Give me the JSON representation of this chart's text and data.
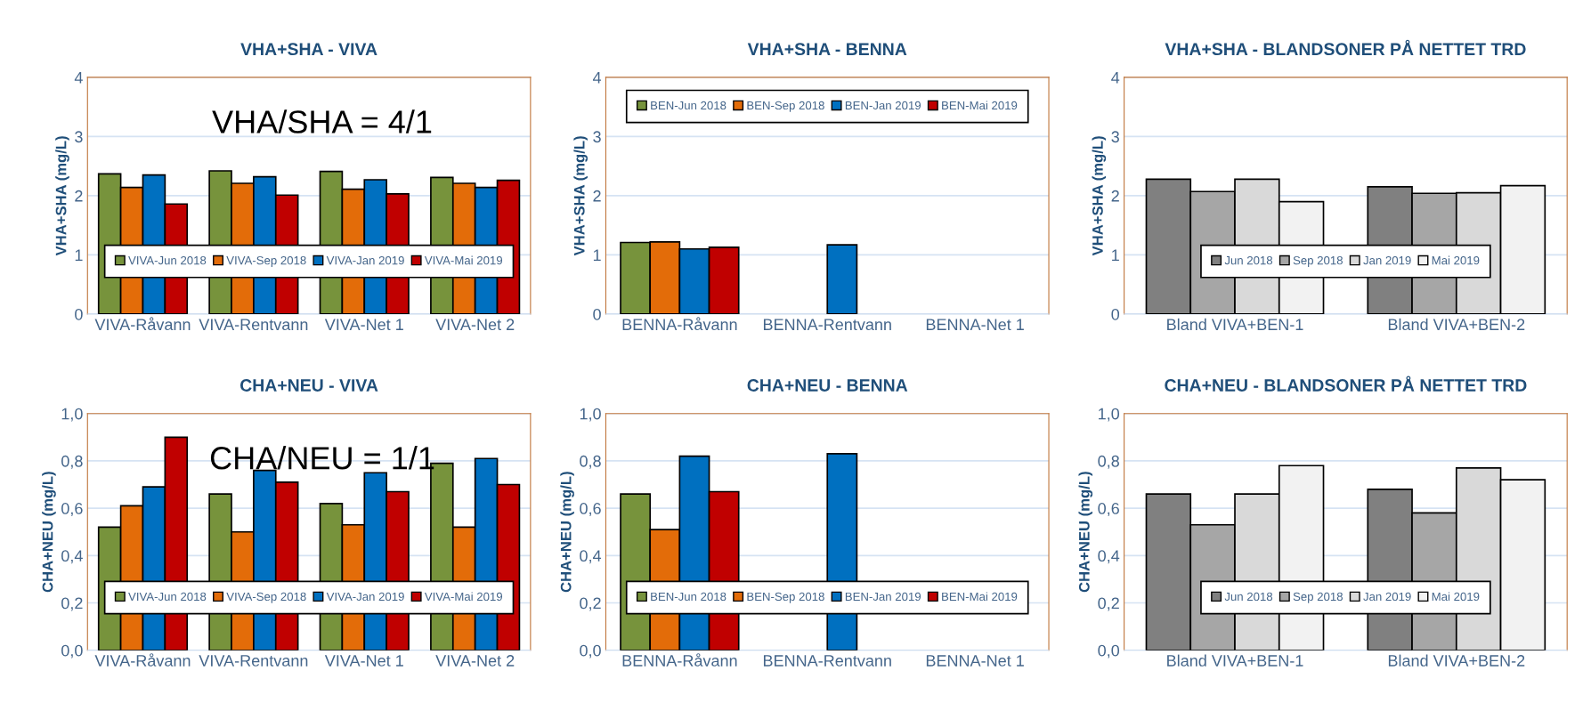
{
  "chart_data": [
    {
      "type": "bar",
      "title": "VHA+SHA - VIVA",
      "ylabel": "VHA+SHA (mg/L)",
      "categories": [
        "VIVA-Råvann",
        "VIVA-Rentvann",
        "VIVA-Net 1",
        "VIVA-Net 2"
      ],
      "series": [
        {
          "name": "VIVA-Jun 2018",
          "color": "#77933c",
          "values": [
            2.37,
            2.42,
            2.41,
            2.31
          ]
        },
        {
          "name": "VIVA-Sep 2018",
          "color": "#e36c09",
          "values": [
            2.14,
            2.21,
            2.11,
            2.21
          ]
        },
        {
          "name": "VIVA-Jan 2019",
          "color": "#0070c0",
          "values": [
            2.35,
            2.32,
            2.27,
            2.14
          ]
        },
        {
          "name": "VIVA-Mai 2019",
          "color": "#c00000",
          "values": [
            1.86,
            2.01,
            2.03,
            2.26
          ]
        }
      ],
      "ylim": [
        0,
        4
      ],
      "yticks": [
        0,
        1,
        2,
        3,
        4
      ],
      "grid": "y",
      "legend": "bottom",
      "annotations": [
        "VHA/SHA = 4/1"
      ]
    },
    {
      "type": "bar",
      "title": "VHA+SHA - BENNA",
      "ylabel": "VHA+SHA (mg/L)",
      "categories": [
        "BENNA-Råvann",
        "BENNA-Rentvann",
        "BENNA-Net 1"
      ],
      "series": [
        {
          "name": "BEN-Jun 2018",
          "color": "#77933c",
          "values": [
            1.21,
            null,
            null
          ]
        },
        {
          "name": "BEN-Sep 2018",
          "color": "#e36c09",
          "values": [
            1.22,
            null,
            null
          ]
        },
        {
          "name": "BEN-Jan 2019",
          "color": "#0070c0",
          "values": [
            1.1,
            1.17,
            null
          ]
        },
        {
          "name": "BEN-Mai 2019",
          "color": "#c00000",
          "values": [
            1.13,
            null,
            null
          ]
        }
      ],
      "ylim": [
        0,
        4
      ],
      "yticks": [
        0,
        1,
        2,
        3,
        4
      ],
      "grid": "y",
      "legend": "top"
    },
    {
      "type": "bar",
      "title": "VHA+SHA - BLANDSONER PÅ NETTET TRD",
      "ylabel": "VHA+SHA (mg/L)",
      "categories": [
        "Bland VIVA+BEN-1",
        "Bland VIVA+BEN-2"
      ],
      "series": [
        {
          "name": "Jun 2018",
          "color": "#808080",
          "values": [
            2.28,
            2.15
          ]
        },
        {
          "name": "Sep 2018",
          "color": "#a6a6a6",
          "values": [
            2.07,
            2.04
          ]
        },
        {
          "name": "Jan 2019",
          "color": "#d9d9d9",
          "values": [
            2.28,
            2.05
          ]
        },
        {
          "name": "Mai 2019",
          "color": "#f2f2f2",
          "values": [
            1.9,
            2.17
          ]
        }
      ],
      "ylim": [
        0,
        4
      ],
      "yticks": [
        0,
        1,
        2,
        3,
        4
      ],
      "grid": "y",
      "legend": "bottom"
    },
    {
      "type": "bar",
      "title": "CHA+NEU - VIVA",
      "ylabel": "CHA+NEU (mg/L)",
      "categories": [
        "VIVA-Råvann",
        "VIVA-Rentvann",
        "VIVA-Net 1",
        "VIVA-Net 2"
      ],
      "series": [
        {
          "name": "VIVA-Jun 2018",
          "color": "#77933c",
          "values": [
            0.52,
            0.66,
            0.62,
            0.79
          ]
        },
        {
          "name": "VIVA-Sep 2018",
          "color": "#e36c09",
          "values": [
            0.61,
            0.5,
            0.53,
            0.52
          ]
        },
        {
          "name": "VIVA-Jan 2019",
          "color": "#0070c0",
          "values": [
            0.69,
            0.76,
            0.75,
            0.81
          ]
        },
        {
          "name": "VIVA-Mai 2019",
          "color": "#c00000",
          "values": [
            0.9,
            0.71,
            0.67,
            0.7
          ]
        }
      ],
      "ylim": [
        0,
        1
      ],
      "yticks": [
        {
          "value": 0,
          "label": "0,0"
        },
        {
          "value": 0.2,
          "label": "0,2"
        },
        {
          "value": 0.4,
          "label": "0,4"
        },
        {
          "value": 0.6,
          "label": "0,6"
        },
        {
          "value": 0.8,
          "label": "0,8"
        },
        {
          "value": 1,
          "label": "1,0"
        }
      ],
      "grid": "y",
      "legend": "bottom",
      "annotations": [
        "CHA/NEU = 1/1"
      ]
    },
    {
      "type": "bar",
      "title": "CHA+NEU - BENNA",
      "ylabel": "CHA+NEU (mg/L)",
      "categories": [
        "BENNA-Råvann",
        "BENNA-Rentvann",
        "BENNA-Net 1"
      ],
      "series": [
        {
          "name": "BEN-Jun 2018",
          "color": "#77933c",
          "values": [
            0.66,
            null,
            null
          ]
        },
        {
          "name": "BEN-Sep 2018",
          "color": "#e36c09",
          "values": [
            0.51,
            null,
            null
          ]
        },
        {
          "name": "BEN-Jan 2019",
          "color": "#0070c0",
          "values": [
            0.82,
            0.83,
            null
          ]
        },
        {
          "name": "BEN-Mai 2019",
          "color": "#c00000",
          "values": [
            0.67,
            null,
            null
          ]
        }
      ],
      "ylim": [
        0,
        1
      ],
      "yticks": [
        {
          "value": 0,
          "label": "0,0"
        },
        {
          "value": 0.2,
          "label": "0,2"
        },
        {
          "value": 0.4,
          "label": "0,4"
        },
        {
          "value": 0.6,
          "label": "0,6"
        },
        {
          "value": 0.8,
          "label": "0,8"
        },
        {
          "value": 1,
          "label": "1,0"
        }
      ],
      "grid": "y",
      "legend": "bottom"
    },
    {
      "type": "bar",
      "title": "CHA+NEU - BLANDSONER PÅ NETTET TRD",
      "ylabel": "CHA+NEU (mg/L)",
      "categories": [
        "Bland VIVA+BEN-1",
        "Bland VIVA+BEN-2"
      ],
      "series": [
        {
          "name": "Jun 2018",
          "color": "#808080",
          "values": [
            0.66,
            0.68
          ]
        },
        {
          "name": "Sep 2018",
          "color": "#a6a6a6",
          "values": [
            0.53,
            0.58
          ]
        },
        {
          "name": "Jan 2019",
          "color": "#d9d9d9",
          "values": [
            0.66,
            0.77
          ]
        },
        {
          "name": "Mai 2019",
          "color": "#f2f2f2",
          "values": [
            0.78,
            0.72
          ]
        }
      ],
      "ylim": [
        0,
        1
      ],
      "yticks": [
        {
          "value": 0,
          "label": "0,0"
        },
        {
          "value": 0.2,
          "label": "0,2"
        },
        {
          "value": 0.4,
          "label": "0,4"
        },
        {
          "value": 0.6,
          "label": "0,6"
        },
        {
          "value": 0.8,
          "label": "0,8"
        },
        {
          "value": 1,
          "label": "1,0"
        }
      ],
      "grid": "y",
      "legend": "bottom"
    }
  ]
}
